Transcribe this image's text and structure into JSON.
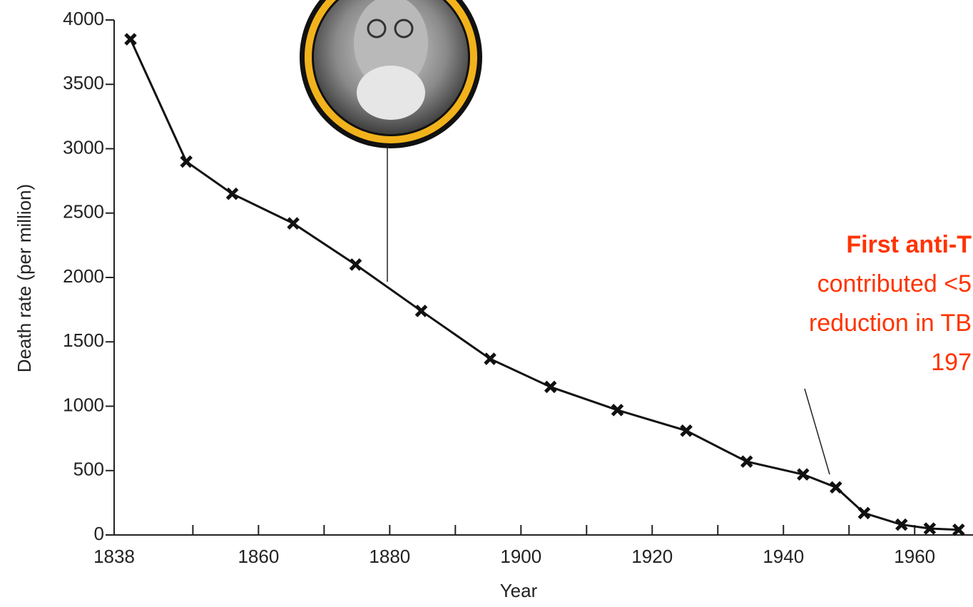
{
  "chart_data": {
    "type": "line",
    "x_label": "Year",
    "y_label": "Death rate (per million)",
    "x": [
      1840.5,
      1849,
      1856,
      1865.3,
      1874.8,
      1884.8,
      1895.3,
      1904.5,
      1914.7,
      1925.2,
      1934.4,
      1943,
      1948,
      1952.3,
      1958,
      1962.3,
      1966.7
    ],
    "values": [
      3850,
      2900,
      2650,
      2420,
      2100,
      1740,
      1368,
      1150,
      970,
      810,
      570,
      470,
      370,
      170,
      80,
      50,
      40
    ],
    "color": "#111111",
    "xlim": [
      1838,
      1969
    ],
    "xticks": [
      1838,
      1860,
      1880,
      1900,
      1920,
      1940,
      1960
    ],
    "xminor_ticks": [
      1850,
      1870,
      1890,
      1910,
      1930,
      1950
    ],
    "ylim": [
      0,
      4000
    ],
    "yticks": [
      0,
      500,
      1000,
      1500,
      2000,
      2500,
      3000,
      3500,
      4000
    ],
    "annotations": [
      "First anti-T",
      "contributed <5",
      "reduction in TB",
      "197"
    ],
    "annotation_color": "#ff3300"
  }
}
